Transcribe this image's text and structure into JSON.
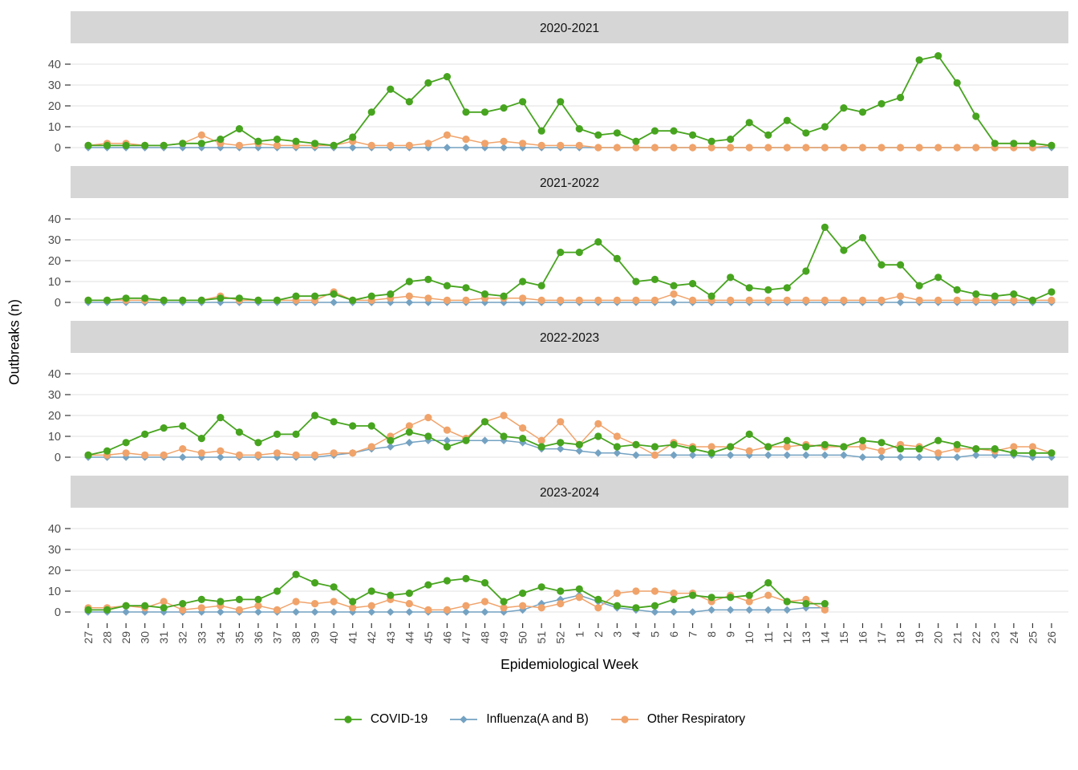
{
  "page_background": "#ffffff",
  "chart_data": {
    "type": "line",
    "title": "",
    "xlabel": "Epidemiological Week",
    "ylabel": "Outbreaks (n)",
    "ylim": [
      0,
      47
    ],
    "yticks": [
      0,
      10,
      20,
      30,
      40
    ],
    "grid": "horizontal-major-only",
    "legend_position": "bottom",
    "facet_layout": "rows",
    "categories": [
      "27",
      "28",
      "29",
      "30",
      "31",
      "32",
      "33",
      "34",
      "35",
      "36",
      "37",
      "38",
      "39",
      "40",
      "41",
      "42",
      "43",
      "44",
      "45",
      "46",
      "47",
      "48",
      "49",
      "50",
      "51",
      "52",
      "1",
      "2",
      "3",
      "4",
      "5",
      "6",
      "7",
      "8",
      "9",
      "10",
      "11",
      "12",
      "13",
      "14",
      "15",
      "16",
      "17",
      "18",
      "19",
      "20",
      "21",
      "22",
      "23",
      "24",
      "25",
      "26"
    ],
    "series_meta": [
      {
        "id": "covid",
        "label": "COVID-19",
        "color": "#47a41f",
        "marker": "circle"
      },
      {
        "id": "influenza",
        "label": "Influenza(A and B)",
        "color": "#74a2c2",
        "marker": "diamond"
      },
      {
        "id": "other",
        "label": "Other Respiratory",
        "color": "#f0a36a",
        "marker": "circle"
      }
    ],
    "facets": [
      {
        "season": "2020-2021",
        "covid": [
          1,
          1,
          1,
          1,
          1,
          2,
          2,
          4,
          9,
          3,
          4,
          3,
          2,
          1,
          5,
          17,
          28,
          22,
          31,
          34,
          17,
          17,
          19,
          22,
          8,
          22,
          9,
          6,
          7,
          3,
          8,
          8,
          6,
          3,
          4,
          12,
          6,
          13,
          7,
          10,
          19,
          17,
          21,
          24,
          42,
          44,
          31,
          15,
          2,
          2,
          2,
          1
        ],
        "influenza": [
          0,
          0,
          0,
          0,
          0,
          0,
          0,
          0,
          0,
          0,
          0,
          0,
          0,
          0,
          0,
          0,
          0,
          0,
          0,
          0,
          0,
          0,
          0,
          0,
          0,
          0,
          0,
          0,
          0,
          0,
          0,
          0,
          0,
          0,
          0,
          0,
          0,
          0,
          0,
          0,
          0,
          0,
          0,
          0,
          0,
          0,
          0,
          0,
          0,
          0,
          0,
          0
        ],
        "other": [
          1,
          2,
          2,
          1,
          1,
          2,
          6,
          2,
          1,
          2,
          1,
          1,
          1,
          1,
          3,
          1,
          1,
          1,
          2,
          6,
          4,
          2,
          3,
          2,
          1,
          1,
          1,
          0,
          0,
          0,
          0,
          0,
          0,
          0,
          0,
          0,
          0,
          0,
          0,
          0,
          0,
          0,
          0,
          0,
          0,
          0,
          0,
          0,
          0,
          0,
          0,
          1
        ]
      },
      {
        "season": "2021-2022",
        "covid": [
          1,
          1,
          2,
          2,
          1,
          1,
          1,
          2,
          2,
          1,
          1,
          3,
          3,
          4,
          1,
          3,
          4,
          10,
          11,
          8,
          7,
          4,
          3,
          10,
          8,
          24,
          24,
          29,
          21,
          10,
          11,
          8,
          9,
          3,
          12,
          7,
          6,
          7,
          15,
          36,
          25,
          31,
          18,
          18,
          8,
          12,
          6,
          4,
          3,
          4,
          1,
          5
        ],
        "influenza": [
          0,
          0,
          0,
          0,
          0,
          0,
          0,
          0,
          0,
          0,
          0,
          0,
          0,
          0,
          0,
          0,
          0,
          0,
          0,
          0,
          0,
          0,
          0,
          0,
          0,
          0,
          0,
          0,
          0,
          0,
          0,
          0,
          0,
          0,
          0,
          0,
          0,
          0,
          0,
          0,
          0,
          0,
          0,
          0,
          0,
          0,
          0,
          0,
          0,
          0,
          0,
          0
        ],
        "other": [
          1,
          1,
          1,
          1,
          1,
          1,
          1,
          3,
          1,
          1,
          1,
          1,
          1,
          5,
          1,
          1,
          2,
          3,
          2,
          1,
          1,
          2,
          2,
          2,
          1,
          1,
          1,
          1,
          1,
          1,
          1,
          4,
          1,
          1,
          1,
          1,
          1,
          1,
          1,
          1,
          1,
          1,
          1,
          3,
          1,
          1,
          1,
          1,
          1,
          1,
          1,
          1
        ]
      },
      {
        "season": "2022-2023",
        "covid": [
          1,
          3,
          7,
          11,
          14,
          15,
          9,
          19,
          12,
          7,
          11,
          11,
          20,
          17,
          15,
          15,
          8,
          12,
          10,
          5,
          8,
          17,
          10,
          9,
          5,
          7,
          6,
          10,
          5,
          6,
          5,
          6,
          4,
          2,
          5,
          11,
          5,
          8,
          5,
          6,
          5,
          8,
          7,
          4,
          4,
          8,
          6,
          4,
          4,
          2,
          2,
          2
        ],
        "influenza": [
          0,
          0,
          0,
          0,
          0,
          0,
          0,
          0,
          0,
          0,
          0,
          0,
          0,
          1,
          2,
          4,
          5,
          7,
          8,
          8,
          8,
          8,
          8,
          7,
          4,
          4,
          3,
          2,
          2,
          1,
          1,
          1,
          1,
          1,
          1,
          1,
          1,
          1,
          1,
          1,
          1,
          0,
          0,
          0,
          0,
          0,
          0,
          1,
          1,
          1,
          0,
          0
        ],
        "other": [
          1,
          1,
          2,
          1,
          1,
          4,
          2,
          3,
          1,
          1,
          2,
          1,
          1,
          2,
          2,
          5,
          10,
          15,
          19,
          13,
          9,
          17,
          20,
          14,
          8,
          17,
          6,
          16,
          10,
          6,
          1,
          7,
          5,
          5,
          5,
          3,
          5,
          5,
          6,
          5,
          5,
          5,
          3,
          6,
          5,
          2,
          4,
          4,
          3,
          5,
          5,
          2
        ]
      },
      {
        "season": "2023-2024",
        "covid": [
          1,
          1,
          3,
          3,
          2,
          4,
          6,
          5,
          6,
          6,
          10,
          18,
          14,
          12,
          5,
          10,
          8,
          9,
          13,
          15,
          16,
          14,
          5,
          9,
          12,
          10,
          11,
          6,
          3,
          2,
          3,
          6,
          8,
          7,
          7,
          8,
          14,
          5,
          4,
          4,
          null,
          null,
          null,
          null,
          null,
          null,
          null,
          null,
          null,
          null,
          null,
          null
        ],
        "influenza": [
          0,
          0,
          0,
          0,
          0,
          0,
          0,
          0,
          0,
          0,
          0,
          0,
          0,
          0,
          0,
          0,
          0,
          0,
          0,
          0,
          0,
          0,
          0,
          1,
          4,
          6,
          8,
          5,
          2,
          1,
          0,
          0,
          0,
          1,
          1,
          1,
          1,
          1,
          2,
          2,
          null,
          null,
          null,
          null,
          null,
          null,
          null,
          null,
          null,
          null,
          null,
          null
        ],
        "other": [
          2,
          2,
          3,
          2,
          5,
          1,
          2,
          3,
          1,
          3,
          1,
          5,
          4,
          5,
          2,
          3,
          6,
          4,
          1,
          1,
          3,
          5,
          2,
          3,
          2,
          4,
          7,
          2,
          9,
          10,
          10,
          9,
          9,
          5,
          8,
          5,
          8,
          5,
          6,
          1,
          null,
          null,
          null,
          null,
          null,
          null,
          null,
          null,
          null,
          null,
          null,
          null
        ]
      }
    ],
    "style": {
      "strip_bg": "#d6d6d6",
      "strip_text_color": "#111111",
      "grid_color": "#e7e7e7",
      "axis_text_color": "#4d4d4d",
      "tick_color": "#333333"
    }
  }
}
